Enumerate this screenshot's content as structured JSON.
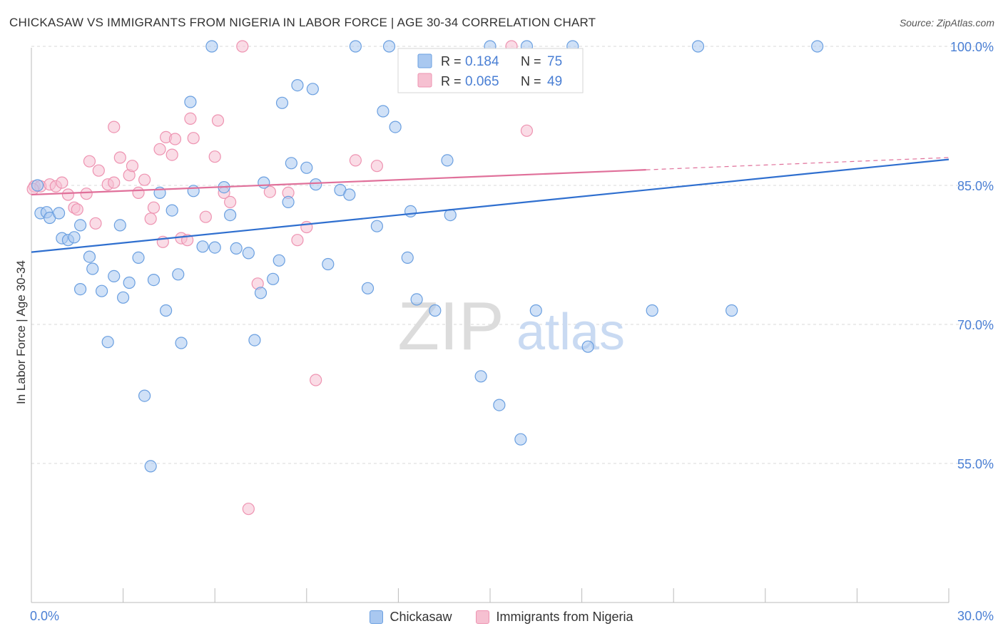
{
  "header": {
    "title": "CHICKASAW VS IMMIGRANTS FROM NIGERIA IN LABOR FORCE | AGE 30-34 CORRELATION CHART",
    "source": "Source: ZipAtlas.com"
  },
  "watermark": {
    "zip": "ZIP",
    "atlas": "atlas"
  },
  "colors": {
    "blue_fill": "#a9c8f0",
    "blue_stroke": "#6a9fe0",
    "blue_line": "#2f6fcf",
    "pink_fill": "#f6c0d1",
    "pink_stroke": "#ee93b1",
    "pink_line": "#e0709a",
    "axis_text": "#4a7fd4"
  },
  "legend_box": {
    "rows": [
      {
        "series": "Chickasaw",
        "r_label": "R =",
        "r_value": "0.184",
        "n_label": "N =",
        "n_value": "75"
      },
      {
        "series": "Immigrants from Nigeria",
        "r_label": "R =",
        "r_value": "0.065",
        "n_label": "N =",
        "n_value": "49"
      }
    ]
  },
  "chart_data": {
    "type": "scatter",
    "title": "CHICKASAW VS IMMIGRANTS FROM NIGERIA IN LABOR FORCE | AGE 30-34 CORRELATION CHART",
    "xlabel": "",
    "ylabel": "In Labor Force | Age 30-34",
    "xlim": [
      0,
      30
    ],
    "ylim": [
      40,
      101
    ],
    "x_tick_labels": [
      "0.0%",
      "30.0%"
    ],
    "y_ticks": [
      55,
      70,
      85,
      100
    ],
    "y_tick_labels": [
      "55.0%",
      "70.0%",
      "85.0%",
      "100.0%"
    ],
    "grid": "horizontal dashed",
    "legend": "bottom-center",
    "series": [
      {
        "name": "Chickasaw",
        "r": 0.184,
        "n": 75,
        "trend": {
          "x": [
            0,
            30
          ],
          "y": [
            77.8,
            87.8
          ],
          "dashed_from": null
        },
        "points": [
          [
            0.2,
            85.0
          ],
          [
            0.3,
            82.0
          ],
          [
            0.5,
            82.1
          ],
          [
            0.6,
            81.5
          ],
          [
            0.9,
            82.0
          ],
          [
            1.0,
            79.3
          ],
          [
            1.2,
            79.1
          ],
          [
            1.4,
            79.4
          ],
          [
            1.6,
            80.7
          ],
          [
            1.6,
            73.8
          ],
          [
            1.9,
            77.3
          ],
          [
            2.0,
            76.0
          ],
          [
            2.3,
            73.6
          ],
          [
            2.5,
            68.1
          ],
          [
            2.7,
            75.2
          ],
          [
            2.9,
            80.7
          ],
          [
            3.0,
            72.9
          ],
          [
            3.2,
            74.5
          ],
          [
            3.5,
            77.2
          ],
          [
            3.7,
            62.3
          ],
          [
            3.9,
            54.7
          ],
          [
            4.0,
            74.8
          ],
          [
            4.2,
            84.2
          ],
          [
            4.4,
            71.5
          ],
          [
            4.6,
            82.3
          ],
          [
            4.8,
            75.4
          ],
          [
            4.9,
            68.0
          ],
          [
            5.2,
            94.0
          ],
          [
            5.3,
            84.4
          ],
          [
            5.6,
            78.4
          ],
          [
            5.9,
            100.0
          ],
          [
            6.0,
            78.3
          ],
          [
            6.3,
            84.8
          ],
          [
            6.5,
            81.8
          ],
          [
            6.7,
            78.2
          ],
          [
            7.1,
            77.7
          ],
          [
            7.3,
            68.3
          ],
          [
            7.5,
            73.4
          ],
          [
            7.6,
            85.3
          ],
          [
            7.9,
            74.9
          ],
          [
            8.1,
            76.9
          ],
          [
            8.2,
            93.9
          ],
          [
            8.4,
            83.2
          ],
          [
            8.5,
            87.4
          ],
          [
            8.7,
            95.8
          ],
          [
            9.0,
            86.9
          ],
          [
            9.2,
            95.4
          ],
          [
            9.3,
            85.1
          ],
          [
            9.7,
            76.5
          ],
          [
            10.1,
            84.5
          ],
          [
            10.4,
            84.0
          ],
          [
            10.6,
            100.0
          ],
          [
            11.0,
            73.9
          ],
          [
            11.3,
            80.6
          ],
          [
            11.5,
            93.0
          ],
          [
            11.7,
            100.0
          ],
          [
            11.9,
            91.3
          ],
          [
            12.3,
            77.2
          ],
          [
            12.4,
            82.2
          ],
          [
            12.6,
            72.7
          ],
          [
            13.2,
            71.5
          ],
          [
            13.6,
            87.7
          ],
          [
            13.7,
            81.8
          ],
          [
            14.7,
            64.4
          ],
          [
            15.0,
            100.0
          ],
          [
            15.3,
            61.3
          ],
          [
            16.0,
            57.6
          ],
          [
            16.2,
            100.0
          ],
          [
            16.5,
            71.5
          ],
          [
            17.7,
            100.0
          ],
          [
            18.2,
            67.6
          ],
          [
            20.3,
            71.5
          ],
          [
            21.8,
            100.0
          ],
          [
            22.9,
            71.5
          ],
          [
            25.7,
            100.0
          ]
        ]
      },
      {
        "name": "Immigrants from Nigeria",
        "r": 0.065,
        "n": 49,
        "trend": {
          "x": [
            0,
            30
          ],
          "y": [
            84.0,
            88.0
          ],
          "dashed_from": 20.1
        },
        "points": [
          [
            0.1,
            84.9
          ],
          [
            0.3,
            84.9
          ],
          [
            0.6,
            85.1
          ],
          [
            0.8,
            84.9
          ],
          [
            1.0,
            85.3
          ],
          [
            1.2,
            84.0
          ],
          [
            1.4,
            82.6
          ],
          [
            1.5,
            82.4
          ],
          [
            1.8,
            84.1
          ],
          [
            1.9,
            87.6
          ],
          [
            2.1,
            80.9
          ],
          [
            2.2,
            86.6
          ],
          [
            2.5,
            85.1
          ],
          [
            2.7,
            85.3
          ],
          [
            2.7,
            91.3
          ],
          [
            2.9,
            88.0
          ],
          [
            3.2,
            86.1
          ],
          [
            3.3,
            87.1
          ],
          [
            3.5,
            84.2
          ],
          [
            3.7,
            85.6
          ],
          [
            3.9,
            81.4
          ],
          [
            4.0,
            82.6
          ],
          [
            4.2,
            88.9
          ],
          [
            4.3,
            78.9
          ],
          [
            4.4,
            90.2
          ],
          [
            4.6,
            88.3
          ],
          [
            4.7,
            90.0
          ],
          [
            4.9,
            79.3
          ],
          [
            5.1,
            79.1
          ],
          [
            5.2,
            92.2
          ],
          [
            5.3,
            90.1
          ],
          [
            5.7,
            81.6
          ],
          [
            6.0,
            88.1
          ],
          [
            6.1,
            92.0
          ],
          [
            6.3,
            84.2
          ],
          [
            6.5,
            83.2
          ],
          [
            6.9,
            100.0
          ],
          [
            7.1,
            50.1
          ],
          [
            7.4,
            74.4
          ],
          [
            7.8,
            84.3
          ],
          [
            8.4,
            84.2
          ],
          [
            8.7,
            79.1
          ],
          [
            9.0,
            80.5
          ],
          [
            9.3,
            64.0
          ],
          [
            10.6,
            87.7
          ],
          [
            11.3,
            87.1
          ],
          [
            15.7,
            100.0
          ],
          [
            16.2,
            90.9
          ],
          [
            0.05,
            84.6
          ]
        ]
      }
    ]
  }
}
